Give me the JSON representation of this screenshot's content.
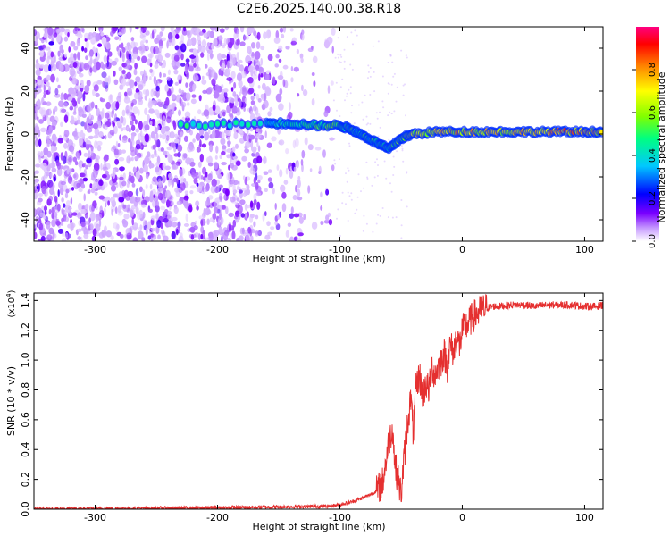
{
  "title": "C2E6.2025.140.00.38.R18",
  "colors": {
    "snr_line": "#e53030",
    "axis": "#000000"
  },
  "chart_data": [
    {
      "type": "heatmap",
      "xlabel": "Height of straight line (km)",
      "ylabel": "Frequency (Hz)",
      "xlim": [
        -350,
        115
      ],
      "ylim": [
        -50,
        50
      ],
      "x_ticks": [
        -300,
        -200,
        -100,
        0,
        100
      ],
      "y_ticks": [
        -40,
        -20,
        0,
        20,
        40
      ],
      "colorbar": {
        "label": "Normalized spectral amplitude",
        "range": [
          0.0,
          1.0
        ],
        "ticks": [
          "0.0",
          "0.2",
          "0.4",
          "0.6",
          "0.8"
        ],
        "colormap": [
          "#ffffff",
          "#7a00ff",
          "#0000ff",
          "#00c0ff",
          "#00ff80",
          "#a0ff00",
          "#ffff00",
          "#ff8000",
          "#ff0000",
          "#ff0080"
        ]
      },
      "signal_track": [
        {
          "x": -230,
          "y": 4,
          "amp": 0.45
        },
        {
          "x": -160,
          "y": 5,
          "amp": 0.4
        },
        {
          "x": -140,
          "y": 5,
          "amp": 0.45
        },
        {
          "x": -120,
          "y": 4,
          "amp": 0.5
        },
        {
          "x": -100,
          "y": 4,
          "amp": 0.55
        },
        {
          "x": -90,
          "y": 2,
          "amp": 0.5
        },
        {
          "x": -80,
          "y": -1,
          "amp": 0.5
        },
        {
          "x": -70,
          "y": -4,
          "amp": 0.5
        },
        {
          "x": -60,
          "y": -7,
          "amp": 0.55
        },
        {
          "x": -50,
          "y": -2,
          "amp": 0.6
        },
        {
          "x": -40,
          "y": 0,
          "amp": 0.65
        },
        {
          "x": -20,
          "y": 1,
          "amp": 0.7
        },
        {
          "x": 0,
          "y": 1,
          "amp": 0.75
        },
        {
          "x": 20,
          "y": 1,
          "amp": 0.7
        },
        {
          "x": 40,
          "y": 1,
          "amp": 0.7
        },
        {
          "x": 60,
          "y": 1,
          "amp": 0.7
        },
        {
          "x": 80,
          "y": 1,
          "amp": 0.8
        },
        {
          "x": 100,
          "y": 1,
          "amp": 0.75
        },
        {
          "x": 115,
          "y": 1,
          "amp": 0.7
        }
      ]
    },
    {
      "type": "line",
      "xlabel": "Height of straight line (km)",
      "ylabel": "SNR (10 * v/v)",
      "y_multiplier": "(x10",
      "y_multiplier_exp": "4",
      "y_multiplier_close": ")",
      "xlim": [
        -350,
        115
      ],
      "ylim": [
        0,
        1.45
      ],
      "x_ticks": [
        -300,
        -200,
        -100,
        0,
        100
      ],
      "y_ticks": [
        "0.0",
        "0.2",
        "0.4",
        "0.6",
        "0.8",
        "1.0",
        "1.2",
        "1.4"
      ],
      "series": [
        {
          "x": [
            -350,
            -200,
            -110,
            -100,
            -90,
            -80,
            -70,
            -65,
            -60,
            -57,
            -55,
            -52,
            -50,
            -48,
            -45,
            -42,
            -40,
            -38,
            -35,
            -32,
            -30,
            -27,
            -25,
            -22,
            -20,
            -17,
            -15,
            -12,
            -10,
            -7,
            -5,
            -2,
            0,
            5,
            10,
            15,
            20,
            25,
            30,
            40,
            50,
            60,
            70,
            80,
            90,
            100,
            110,
            115
          ],
          "y": [
            0.0,
            0.01,
            0.02,
            0.03,
            0.05,
            0.08,
            0.12,
            0.18,
            0.45,
            0.55,
            0.3,
            0.18,
            0.1,
            0.3,
            0.55,
            0.75,
            0.5,
            0.8,
            0.9,
            0.75,
            0.85,
            0.8,
            0.95,
            0.9,
            0.95,
            1.0,
            1.05,
            0.95,
            1.1,
            1.05,
            1.15,
            1.1,
            1.2,
            1.25,
            1.3,
            1.33,
            1.35,
            1.36,
            1.36,
            1.37,
            1.37,
            1.36,
            1.37,
            1.37,
            1.37,
            1.36,
            1.36,
            1.37
          ]
        }
      ]
    }
  ]
}
